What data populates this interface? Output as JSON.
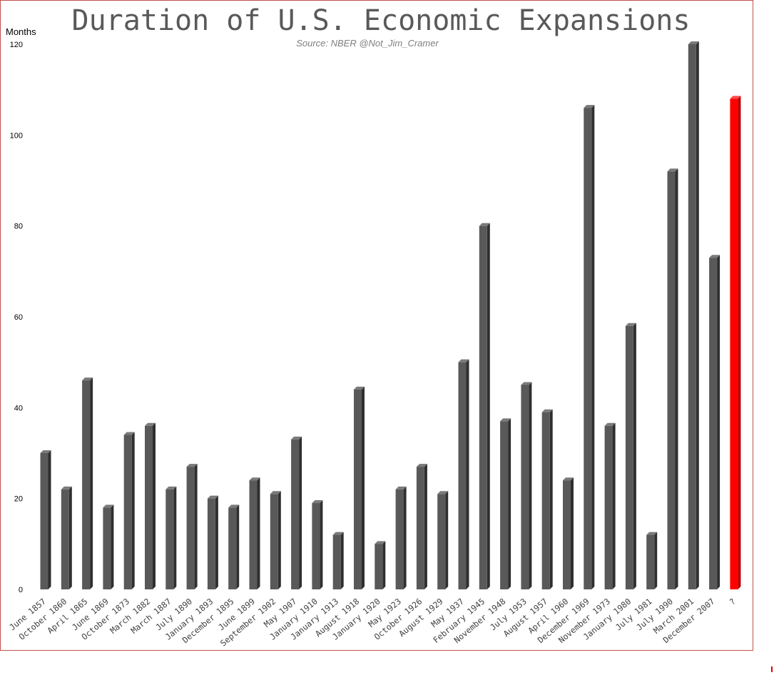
{
  "chart_data": {
    "type": "bar",
    "title": "Duration of U.S. Economic Expansions",
    "subtitle": "Source: NBER  @Not_Jim_Cramer",
    "ylabel": "Months",
    "xlabel": "",
    "ylim": [
      0,
      120
    ],
    "yticks": [
      0,
      20,
      40,
      60,
      80,
      100,
      120
    ],
    "grid": false,
    "legend": "none",
    "categories": [
      "June 1857",
      "October 1860",
      "April 1865",
      "June 1869",
      "October 1873",
      "March 1882",
      "March 1887",
      "July 1890",
      "January 1893",
      "December 1895",
      "June 1899",
      "September 1902",
      "May 1907",
      "January 1910",
      "January 1913",
      "August 1918",
      "January 1920",
      "May 1923",
      "October 1926",
      "August 1929",
      "May 1937",
      "February 1945",
      "November 1948",
      "July 1953",
      "August 1957",
      "April 1960",
      "December 1969",
      "November 1973",
      "January 1980",
      "July 1981",
      "July 1990",
      "March 2001",
      "December 2007",
      "?"
    ],
    "values": [
      30,
      22,
      46,
      18,
      34,
      36,
      22,
      27,
      20,
      18,
      24,
      21,
      33,
      19,
      12,
      44,
      10,
      22,
      27,
      21,
      50,
      80,
      37,
      45,
      39,
      24,
      106,
      36,
      58,
      12,
      92,
      120,
      73,
      108
    ],
    "bar_color": "#595959",
    "highlight_color": "#ff0000",
    "highlight_category": "?"
  }
}
